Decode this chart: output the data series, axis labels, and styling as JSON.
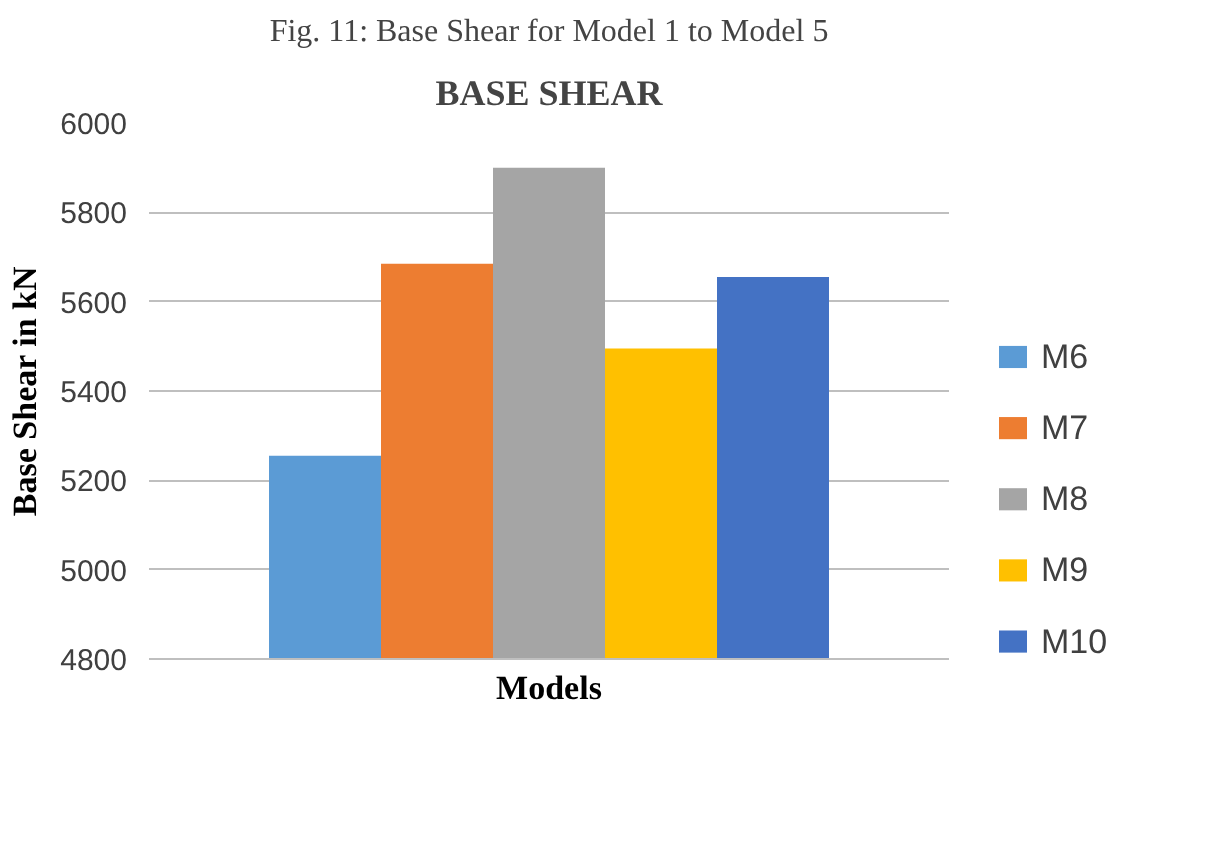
{
  "chart_data": {
    "type": "bar",
    "title": "BASE SHEAR",
    "xlabel": "Models",
    "ylabel": "Base Shear in kN",
    "annotations": [
      "Fig. 11: Base Shear for Model 1 to Model 5"
    ],
    "categories": [
      null
    ],
    "series": [
      {
        "name": "M6",
        "color": "#5b9bd5",
        "values": [
          5255
        ]
      },
      {
        "name": "M7",
        "color": "#ed7d31",
        "values": [
          5685
        ]
      },
      {
        "name": "M8",
        "color": "#a5a5a5",
        "values": [
          5900
        ]
      },
      {
        "name": "M9",
        "color": "#ffc000",
        "values": [
          5495
        ]
      },
      {
        "name": "M10",
        "color": "#4472c4",
        "values": [
          5655
        ]
      }
    ],
    "ylim": [
      4800,
      6000
    ],
    "yticks": [
      4800,
      5000,
      5200,
      5400,
      5600,
      5800,
      6000
    ],
    "grid": "y",
    "legend": "right"
  }
}
